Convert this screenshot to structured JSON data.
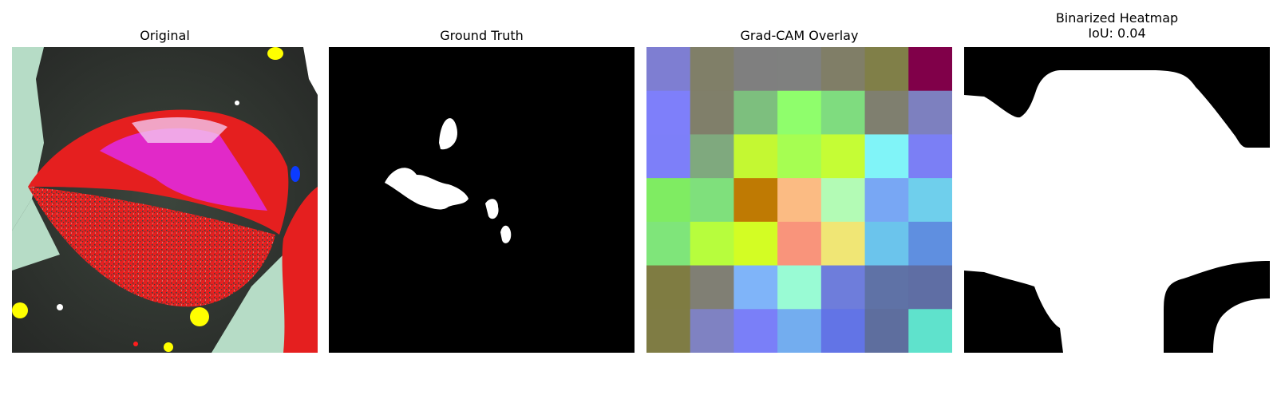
{
  "panels": {
    "original": {
      "title": "Original"
    },
    "ground_truth": {
      "title": "Ground Truth"
    },
    "gradcam": {
      "title": "Grad-CAM Overlay",
      "grid_colors": [
        [
          "#7e7ed2",
          "#807f68",
          "#7f7f7f",
          "#7f807f",
          "#807e67",
          "#807f48",
          "#800049"
        ],
        [
          "#7e7ffa",
          "#807f6a",
          "#7dbf7e",
          "#8ffe6c",
          "#7fdc7f",
          "#7f7f6f",
          "#7d80bf"
        ],
        [
          "#7d7ff9",
          "#7fa97e",
          "#c4f832",
          "#a6fe52",
          "#c5fd35",
          "#80f4f8",
          "#7b7ff5"
        ],
        [
          "#7fec62",
          "#7fe07c",
          "#bf7a03",
          "#fbbb83",
          "#b3fbb5",
          "#78a7f4",
          "#6fcfec"
        ],
        [
          "#7fe57a",
          "#b7fd3d",
          "#d3fd24",
          "#f9947b",
          "#f0e675",
          "#6bc4ec",
          "#5f8fe0"
        ],
        [
          "#7f7c42",
          "#807f74",
          "#7fb4f9",
          "#99fbd4",
          "#6e7ddb",
          "#5f72a6",
          "#5f6ea4"
        ],
        [
          "#7f7c44",
          "#7f82c2",
          "#7a7ff8",
          "#73adef",
          "#6274e6",
          "#5e6e9e",
          "#5fe2cc"
        ]
      ]
    },
    "binarized": {
      "title_line1": "Binarized Heatmap",
      "title_line2": "IoU: 0.04"
    }
  }
}
